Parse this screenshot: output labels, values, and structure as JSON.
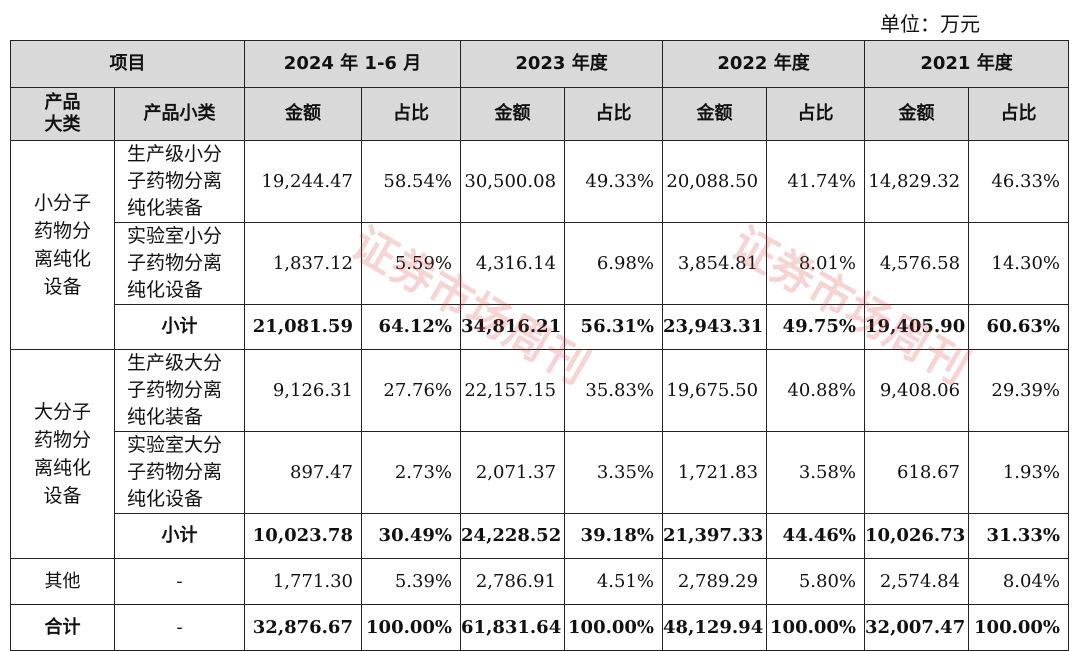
{
  "unit_label": "单位：万元",
  "header": {
    "item": "项目",
    "periods": [
      "2024 年 1-6 月",
      "2023 年度",
      "2022 年度",
      "2021 年度"
    ],
    "category": "产品大类",
    "subcategory": "产品小类",
    "amount": "金额",
    "ratio": "占比"
  },
  "groups": [
    {
      "name": "小分子药物分离纯化设备",
      "rows": [
        {
          "label": "生产级小分子药物分离纯化装备",
          "values": [
            "19,244.47",
            "58.54%",
            "30,500.08",
            "49.33%",
            "20,088.50",
            "41.74%",
            "14,829.32",
            "46.33%"
          ]
        },
        {
          "label": "实验室小分子药物分离纯化设备",
          "values": [
            "1,837.12",
            "5.59%",
            "4,316.14",
            "6.98%",
            "3,854.81",
            "8.01%",
            "4,576.58",
            "14.30%"
          ]
        }
      ],
      "subtotal": {
        "label": "小计",
        "values": [
          "21,081.59",
          "64.12%",
          "34,816.21",
          "56.31%",
          "23,943.31",
          "49.75%",
          "19,405.90",
          "60.63%"
        ]
      }
    },
    {
      "name": "大分子药物分离纯化设备",
      "rows": [
        {
          "label": "生产级大分子药物分离纯化装备",
          "values": [
            "9,126.31",
            "27.76%",
            "22,157.15",
            "35.83%",
            "19,675.50",
            "40.88%",
            "9,408.06",
            "29.39%"
          ]
        },
        {
          "label": "实验室大分子药物分离纯化设备",
          "values": [
            "897.47",
            "2.73%",
            "2,071.37",
            "3.35%",
            "1,721.83",
            "3.58%",
            "618.67",
            "1.93%"
          ]
        }
      ],
      "subtotal": {
        "label": "小计",
        "values": [
          "10,023.78",
          "30.49%",
          "24,228.52",
          "39.18%",
          "21,397.33",
          "44.46%",
          "10,026.73",
          "31.33%"
        ]
      }
    }
  ],
  "other": {
    "label": "其他",
    "sub": "-",
    "values": [
      "1,771.30",
      "5.39%",
      "2,786.91",
      "4.51%",
      "2,789.29",
      "5.80%",
      "2,574.84",
      "8.04%"
    ]
  },
  "total": {
    "label": "合计",
    "sub": "-",
    "values": [
      "32,876.67",
      "100.00%",
      "61,831.64",
      "100.00%",
      "48,129.94",
      "100.00%",
      "32,007.47",
      "100.00%"
    ]
  },
  "watermark": "证券市场周刊"
}
